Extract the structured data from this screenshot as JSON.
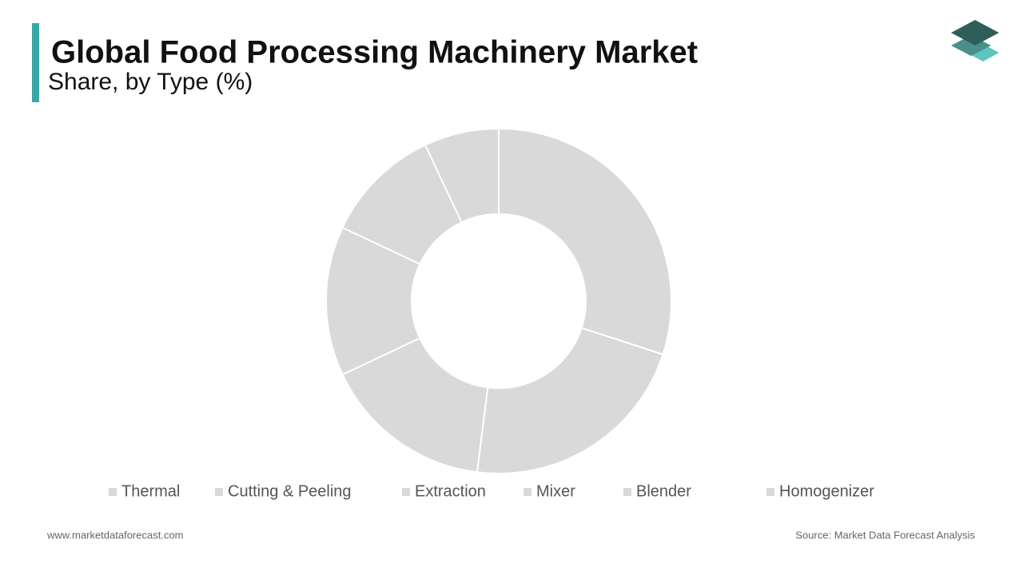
{
  "chart_data": {
    "type": "donut",
    "title": "Global Food Processing Machinery Market",
    "subtitle": "Share, by Type (%)",
    "categories": [
      "Thermal",
      "Cutting & Peeling",
      "Extraction",
      "Mixer",
      "Blender",
      "Homogenizer"
    ],
    "values": [
      30,
      22,
      16,
      14,
      11,
      7
    ],
    "color": "#d9d9d9",
    "legend": "bottom"
  },
  "footer": {
    "website": "www.marketdataforecast.com",
    "source": "Source: Market Data Forecast Analysis"
  }
}
